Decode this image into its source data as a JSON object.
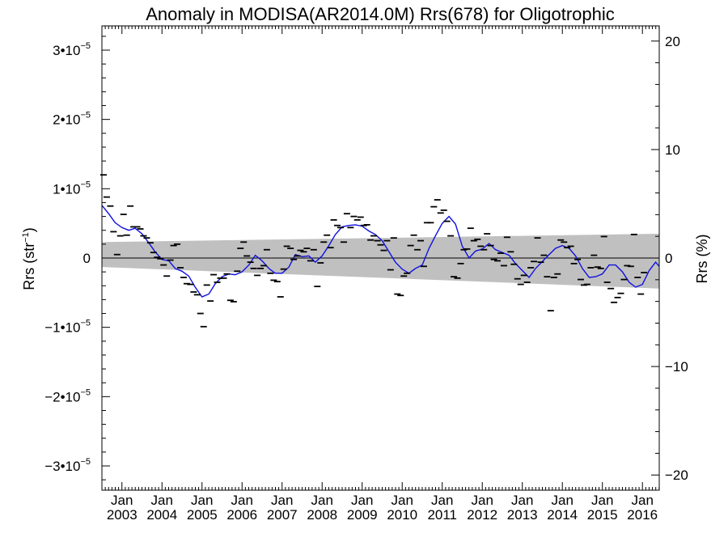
{
  "chart_data": {
    "type": "line",
    "title": "Anomaly in MODISA(AR2014.0M) Rrs(678) for Oligotrophic",
    "ylabel_left": "Rrs (str",
    "ylabel_left_sup": "−1",
    "ylabel_left_close": ")",
    "ylabel_right": "Rrs (%)",
    "xlim": [
      2002.5,
      2016.42
    ],
    "ylim": [
      -3.35e-05,
      3.35e-05
    ],
    "ylim_right": [
      -21.4,
      21.4
    ],
    "x_ticks": [
      {
        "x": 2003,
        "month": "Jan",
        "year": "2003"
      },
      {
        "x": 2004,
        "month": "Jan",
        "year": "2004"
      },
      {
        "x": 2005,
        "month": "Jan",
        "year": "2005"
      },
      {
        "x": 2006,
        "month": "Jan",
        "year": "2006"
      },
      {
        "x": 2007,
        "month": "Jan",
        "year": "2007"
      },
      {
        "x": 2008,
        "month": "Jan",
        "year": "2008"
      },
      {
        "x": 2009,
        "month": "Jan",
        "year": "2009"
      },
      {
        "x": 2010,
        "month": "Jan",
        "year": "2010"
      },
      {
        "x": 2011,
        "month": "Jan",
        "year": "2011"
      },
      {
        "x": 2012,
        "month": "Jan",
        "year": "2012"
      },
      {
        "x": 2013,
        "month": "Jan",
        "year": "2013"
      },
      {
        "x": 2014,
        "month": "Jan",
        "year": "2014"
      },
      {
        "x": 2015,
        "month": "Jan",
        "year": "2015"
      },
      {
        "x": 2016,
        "month": "Jan",
        "year": "2016"
      }
    ],
    "y_ticks_left": [
      {
        "v": 3e-05,
        "mant": "3•10",
        "exp": "−5"
      },
      {
        "v": 2e-05,
        "mant": "2•10",
        "exp": "−5"
      },
      {
        "v": 1e-05,
        "mant": "1•10",
        "exp": "−5"
      },
      {
        "v": 0,
        "mant": "0",
        "exp": ""
      },
      {
        "v": -1e-05,
        "mant": "−1•10",
        "exp": "−5"
      },
      {
        "v": -2e-05,
        "mant": "−2•10",
        "exp": "−5"
      },
      {
        "v": -3e-05,
        "mant": "−3•10",
        "exp": "−5"
      }
    ],
    "y_ticks_right": [
      {
        "v": 20,
        "label": "20"
      },
      {
        "v": 10,
        "label": "10"
      },
      {
        "v": 0,
        "label": "0"
      },
      {
        "v": -10,
        "label": "−10"
      },
      {
        "v": -20,
        "label": "−20"
      }
    ],
    "band": {
      "x": [
        2002.5,
        2016.42
      ],
      "upper": [
        2.3e-06,
        3.5e-06
      ],
      "lower": [
        -1.3e-06,
        -4.4e-06
      ],
      "color": "#c0c0c0"
    },
    "monthly_anomalies": [
      {
        "x": 2002.54,
        "y": 1.2e-05
      },
      {
        "x": 2002.62,
        "y": 8.8e-06
      },
      {
        "x": 2002.71,
        "y": 7.5e-06
      },
      {
        "x": 2002.79,
        "y": 3.8e-06
      },
      {
        "x": 2002.88,
        "y": 5e-07
      },
      {
        "x": 2002.96,
        "y": 3.2e-06
      },
      {
        "x": 2003.04,
        "y": 6.3e-06
      },
      {
        "x": 2003.12,
        "y": 3.3e-06
      },
      {
        "x": 2003.21,
        "y": 7.5e-06
      },
      {
        "x": 2003.29,
        "y": 4.5e-06
      },
      {
        "x": 2003.38,
        "y": 4.5e-06
      },
      {
        "x": 2003.46,
        "y": 4.2e-06
      },
      {
        "x": 2003.54,
        "y": 3.2e-06
      },
      {
        "x": 2003.62,
        "y": 2.9e-06
      },
      {
        "x": 2003.71,
        "y": 2.2e-06
      },
      {
        "x": 2003.79,
        "y": 8e-07
      },
      {
        "x": 2003.88,
        "y": 1e-07
      },
      {
        "x": 2003.96,
        "y": -1e-07
      },
      {
        "x": 2004.04,
        "y": -1e-06
      },
      {
        "x": 2004.12,
        "y": -2.6e-06
      },
      {
        "x": 2004.21,
        "y": -3e-07
      },
      {
        "x": 2004.29,
        "y": 1.8e-06
      },
      {
        "x": 2004.38,
        "y": 2e-06
      },
      {
        "x": 2004.46,
        "y": -1.4e-06
      },
      {
        "x": 2004.54,
        "y": -2.8e-06
      },
      {
        "x": 2004.62,
        "y": -3.7e-06
      },
      {
        "x": 2004.71,
        "y": -3.8e-06
      },
      {
        "x": 2004.79,
        "y": -4.9e-06
      },
      {
        "x": 2004.88,
        "y": -5.3e-06
      },
      {
        "x": 2004.96,
        "y": -8e-06
      },
      {
        "x": 2005.04,
        "y": -9.9e-06
      },
      {
        "x": 2005.12,
        "y": -3.9e-06
      },
      {
        "x": 2005.21,
        "y": -6.2e-06
      },
      {
        "x": 2005.29,
        "y": -2.4e-06
      },
      {
        "x": 2005.38,
        "y": -3.5e-06
      },
      {
        "x": 2005.46,
        "y": -2.9e-06
      },
      {
        "x": 2005.54,
        "y": -2.9e-06
      },
      {
        "x": 2005.62,
        "y": -2.3e-06
      },
      {
        "x": 2005.71,
        "y": -6.1e-06
      },
      {
        "x": 2005.79,
        "y": -6.3e-06
      },
      {
        "x": 2005.88,
        "y": -1.9e-06
      },
      {
        "x": 2005.96,
        "y": 1.4e-06
      },
      {
        "x": 2006.04,
        "y": 2.3e-06
      },
      {
        "x": 2006.12,
        "y": 3e-07
      },
      {
        "x": 2006.21,
        "y": -6e-07
      },
      {
        "x": 2006.29,
        "y": -1.5e-06
      },
      {
        "x": 2006.38,
        "y": -2.5e-06
      },
      {
        "x": 2006.46,
        "y": -1.5e-06
      },
      {
        "x": 2006.54,
        "y": -1.1e-06
      },
      {
        "x": 2006.62,
        "y": 1.2e-06
      },
      {
        "x": 2006.71,
        "y": -2.2e-06
      },
      {
        "x": 2006.79,
        "y": -3.2e-06
      },
      {
        "x": 2006.88,
        "y": -3.4e-06
      },
      {
        "x": 2006.96,
        "y": -5.6e-06
      },
      {
        "x": 2007.04,
        "y": -1.6e-06
      },
      {
        "x": 2007.12,
        "y": 1.7e-06
      },
      {
        "x": 2007.21,
        "y": 1.4e-06
      },
      {
        "x": 2007.29,
        "y": -2e-07
      },
      {
        "x": 2007.38,
        "y": 3e-07
      },
      {
        "x": 2007.46,
        "y": 1.1e-06
      },
      {
        "x": 2007.54,
        "y": 9e-07
      },
      {
        "x": 2007.62,
        "y": 1.4e-06
      },
      {
        "x": 2007.71,
        "y": -4e-07
      },
      {
        "x": 2007.79,
        "y": 1.2e-06
      },
      {
        "x": 2007.88,
        "y": -4.1e-06
      },
      {
        "x": 2007.96,
        "y": -7e-07
      },
      {
        "x": 2008.04,
        "y": 2.3e-06
      },
      {
        "x": 2008.12,
        "y": 3.3e-06
      },
      {
        "x": 2008.21,
        "y": 1.5e-06
      },
      {
        "x": 2008.29,
        "y": 5.5e-06
      },
      {
        "x": 2008.38,
        "y": 4.7e-06
      },
      {
        "x": 2008.46,
        "y": 4.4e-06
      },
      {
        "x": 2008.54,
        "y": 2.3e-06
      },
      {
        "x": 2008.62,
        "y": 6.4e-06
      },
      {
        "x": 2008.71,
        "y": 4.4e-06
      },
      {
        "x": 2008.79,
        "y": 6e-06
      },
      {
        "x": 2008.88,
        "y": 5.5e-06
      },
      {
        "x": 2008.96,
        "y": 5.9e-06
      },
      {
        "x": 2009.04,
        "y": 4.7e-06
      },
      {
        "x": 2009.12,
        "y": 4.8e-06
      },
      {
        "x": 2009.21,
        "y": 2.6e-06
      },
      {
        "x": 2009.29,
        "y": 3.2e-06
      },
      {
        "x": 2009.38,
        "y": 2.5e-06
      },
      {
        "x": 2009.46,
        "y": 1.9e-06
      },
      {
        "x": 2009.54,
        "y": 1.1e-06
      },
      {
        "x": 2009.62,
        "y": 2.5e-06
      },
      {
        "x": 2009.71,
        "y": -1.7e-06
      },
      {
        "x": 2009.79,
        "y": 2.9e-06
      },
      {
        "x": 2009.88,
        "y": -5.2e-06
      },
      {
        "x": 2009.96,
        "y": -5.4e-06
      },
      {
        "x": 2010.04,
        "y": -2.6e-06
      },
      {
        "x": 2010.12,
        "y": -2.2e-06
      },
      {
        "x": 2010.21,
        "y": 1.8e-06
      },
      {
        "x": 2010.29,
        "y": 3.3e-06
      },
      {
        "x": 2010.38,
        "y": 1.2e-06
      },
      {
        "x": 2010.46,
        "y": 2.5e-06
      },
      {
        "x": 2010.54,
        "y": -1.2e-06
      },
      {
        "x": 2010.62,
        "y": 5.1e-06
      },
      {
        "x": 2010.71,
        "y": 5.1e-06
      },
      {
        "x": 2010.79,
        "y": 7.4e-06
      },
      {
        "x": 2010.88,
        "y": 8.4e-06
      },
      {
        "x": 2010.96,
        "y": 6.5e-06
      },
      {
        "x": 2011.04,
        "y": 6.9e-06
      },
      {
        "x": 2011.12,
        "y": 5.3e-06
      },
      {
        "x": 2011.21,
        "y": 3.2e-06
      },
      {
        "x": 2011.29,
        "y": -2.7e-06
      },
      {
        "x": 2011.38,
        "y": -2.9e-06
      },
      {
        "x": 2011.46,
        "y": -8e-07
      },
      {
        "x": 2011.54,
        "y": 1.2e-06
      },
      {
        "x": 2011.62,
        "y": 1.3e-06
      },
      {
        "x": 2011.71,
        "y": 4.3e-06
      },
      {
        "x": 2011.79,
        "y": 2.5e-06
      },
      {
        "x": 2011.88,
        "y": 2.7e-06
      },
      {
        "x": 2011.96,
        "y": 1.7e-06
      },
      {
        "x": 2012.04,
        "y": 1.2e-06
      },
      {
        "x": 2012.12,
        "y": 3.5e-06
      },
      {
        "x": 2012.21,
        "y": 1.8e-06
      },
      {
        "x": 2012.29,
        "y": -2e-07
      },
      {
        "x": 2012.38,
        "y": -4e-07
      },
      {
        "x": 2012.46,
        "y": 7e-07
      },
      {
        "x": 2012.54,
        "y": -1.1e-06
      },
      {
        "x": 2012.62,
        "y": 3e-06
      },
      {
        "x": 2012.71,
        "y": 9e-07
      },
      {
        "x": 2012.79,
        "y": -9e-07
      },
      {
        "x": 2012.88,
        "y": -3e-06
      },
      {
        "x": 2012.96,
        "y": -3.8e-06
      },
      {
        "x": 2013.04,
        "y": -2.5e-06
      },
      {
        "x": 2013.12,
        "y": -3.5e-06
      },
      {
        "x": 2013.21,
        "y": -1.4e-06
      },
      {
        "x": 2013.29,
        "y": -5e-07
      },
      {
        "x": 2013.38,
        "y": 2.9e-06
      },
      {
        "x": 2013.46,
        "y": -6e-07
      },
      {
        "x": 2013.54,
        "y": 4e-07
      },
      {
        "x": 2013.62,
        "y": -2.7e-06
      },
      {
        "x": 2013.71,
        "y": -7.6e-06
      },
      {
        "x": 2013.79,
        "y": -2.8e-06
      },
      {
        "x": 2013.88,
        "y": -2.3e-06
      },
      {
        "x": 2013.96,
        "y": 2.6e-06
      },
      {
        "x": 2014.04,
        "y": 2.3e-06
      },
      {
        "x": 2014.12,
        "y": 1.5e-06
      },
      {
        "x": 2014.21,
        "y": 1.7e-06
      },
      {
        "x": 2014.29,
        "y": -8e-07
      },
      {
        "x": 2014.38,
        "y": -2e-07
      },
      {
        "x": 2014.46,
        "y": -3.1e-06
      },
      {
        "x": 2014.54,
        "y": -3.9e-06
      },
      {
        "x": 2014.62,
        "y": -3.8e-06
      },
      {
        "x": 2014.71,
        "y": -1.4e-06
      },
      {
        "x": 2014.79,
        "y": 4e-07
      },
      {
        "x": 2014.88,
        "y": -1.3e-06
      },
      {
        "x": 2014.96,
        "y": -1.5e-06
      },
      {
        "x": 2015.04,
        "y": 3.1e-06
      },
      {
        "x": 2015.12,
        "y": -3.5e-06
      },
      {
        "x": 2015.21,
        "y": -4.4e-06
      },
      {
        "x": 2015.29,
        "y": -6.4e-06
      },
      {
        "x": 2015.38,
        "y": -5.7e-06
      },
      {
        "x": 2015.46,
        "y": -5.1e-06
      },
      {
        "x": 2015.54,
        "y": -3.1e-06
      },
      {
        "x": 2015.62,
        "y": -1.1e-06
      },
      {
        "x": 2015.71,
        "y": -1.2e-06
      },
      {
        "x": 2015.79,
        "y": 3.4e-06
      },
      {
        "x": 2015.88,
        "y": -2.8e-06
      },
      {
        "x": 2015.96,
        "y": -5.2e-06
      },
      {
        "x": 2016.04,
        "y": -2.1e-06
      }
    ],
    "smoothed": {
      "color": "#1010e0",
      "x": [
        2002.5,
        2002.67,
        2002.83,
        2003.0,
        2003.17,
        2003.33,
        2003.5,
        2003.67,
        2003.83,
        2004.0,
        2004.17,
        2004.33,
        2004.5,
        2004.67,
        2004.83,
        2005.0,
        2005.17,
        2005.33,
        2005.5,
        2005.67,
        2005.83,
        2006.0,
        2006.17,
        2006.33,
        2006.5,
        2006.67,
        2006.83,
        2007.0,
        2007.17,
        2007.33,
        2007.5,
        2007.67,
        2007.83,
        2008.0,
        2008.17,
        2008.33,
        2008.5,
        2008.67,
        2008.83,
        2009.0,
        2009.17,
        2009.33,
        2009.5,
        2009.67,
        2009.83,
        2010.0,
        2010.17,
        2010.33,
        2010.5,
        2010.67,
        2010.83,
        2011.0,
        2011.17,
        2011.33,
        2011.5,
        2011.67,
        2011.83,
        2012.0,
        2012.17,
        2012.33,
        2012.5,
        2012.67,
        2012.83,
        2013.0,
        2013.17,
        2013.33,
        2013.5,
        2013.67,
        2013.83,
        2014.0,
        2014.17,
        2014.33,
        2014.5,
        2014.67,
        2014.83,
        2015.0,
        2015.17,
        2015.33,
        2015.5,
        2015.67,
        2015.83,
        2016.0,
        2016.17,
        2016.33,
        2016.42
      ],
      "y": [
        7.6e-06,
        6.4e-06,
        5.1e-06,
        4.4e-06,
        4e-06,
        4.3e-06,
        3.5e-06,
        2.2e-06,
        9e-07,
        -2e-07,
        -4e-07,
        -1.5e-06,
        -1.9e-06,
        -2.6e-06,
        -4.2e-06,
        -5.6e-06,
        -5.2e-06,
        -3.7e-06,
        -2.7e-06,
        -2.3e-06,
        -2.4e-06,
        -2e-06,
        -1e-06,
        4e-07,
        -4e-07,
        -1.5e-06,
        -2.2e-06,
        -2.2e-06,
        -1.3e-06,
        5e-07,
        2e-07,
        3e-07,
        -6e-07,
        3e-07,
        1.8e-06,
        3.4e-06,
        4.5e-06,
        4.7e-06,
        4.8e-06,
        4.6e-06,
        3.9e-06,
        3.4e-06,
        2.5e-06,
        9e-07,
        -6e-07,
        -1.6e-06,
        -2.2e-06,
        -1.5e-06,
        -1e-06,
        1.4e-06,
        3.2e-06,
        5e-06,
        6e-06,
        4.9e-06,
        1.7e-06,
        0.0,
        1e-06,
        1.3e-06,
        2.1e-06,
        1.2e-06,
        8e-07,
        4e-07,
        -8e-07,
        -1.8e-06,
        -2.8e-06,
        -1.5e-06,
        -5e-07,
        5e-07,
        1.4e-06,
        1.8e-06,
        1.4e-06,
        3e-07,
        -1.5e-06,
        -2.8e-06,
        -2.7e-06,
        -2.3e-06,
        -1e-06,
        -1e-06,
        -2e-06,
        -3.5e-06,
        -4.2e-06,
        -3.8e-06,
        -1.8e-06,
        -6e-07,
        -1.2e-06
      ]
    }
  }
}
